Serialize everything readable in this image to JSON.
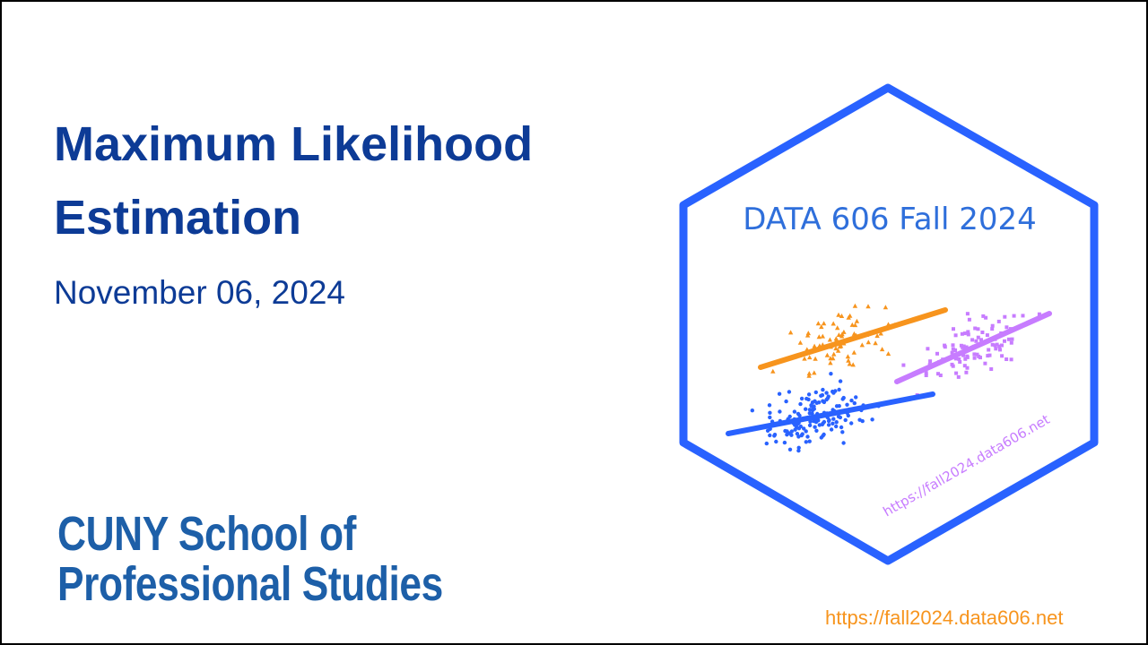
{
  "slide": {
    "title": "Maximum Likelihood Estimation",
    "date": "November 06, 2024",
    "logo_line1": "CUNY School of",
    "logo_line2": "Professional Studies",
    "footer_url": "https://fall2024.data606.net"
  },
  "sticker": {
    "title": "DATA 606 Fall 2024",
    "url": "https://fall2024.data606.net",
    "colors": {
      "border": "#2962ff",
      "title_text": "#2f6fdb",
      "orange": "#f7941d",
      "purple": "#c77cff",
      "blue": "#2962ff",
      "url_text": "#c77cff"
    }
  }
}
